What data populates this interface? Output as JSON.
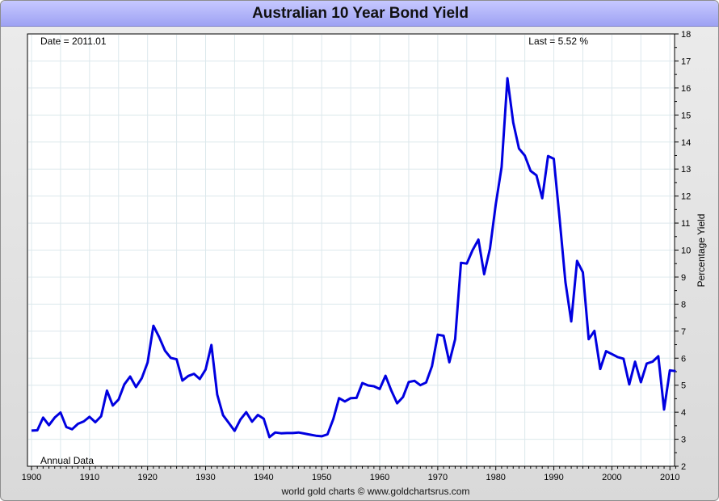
{
  "title": "Australian 10 Year Bond Yield",
  "footer": "world gold charts © www.goldchartsrus.com",
  "colors": {
    "line": "#0000e0",
    "grid": "#dce8ec",
    "title_bg": "#b2b5ff"
  },
  "chart_data": {
    "type": "line",
    "title": "Australian 10 Year Bond Yield",
    "xlabel": "",
    "ylabel": "Percentage Yield",
    "xlim": [
      1900,
      2011.5
    ],
    "ylim": [
      2,
      18
    ],
    "y_axis_side": "right",
    "grid": true,
    "x_ticks": [
      1900,
      1910,
      1920,
      1930,
      1940,
      1950,
      1960,
      1970,
      1980,
      1990,
      2000,
      2010
    ],
    "y_ticks": [
      2,
      3,
      4,
      5,
      6,
      7,
      8,
      9,
      10,
      11,
      12,
      13,
      14,
      15,
      16,
      17,
      18
    ],
    "annotations": {
      "date": "Date = 2011.01",
      "last": "Last = 5.52 %",
      "frequency": "Annual Data"
    },
    "series": [
      {
        "name": "",
        "color": "#0000e0",
        "x": [
          1900,
          1901,
          1902,
          1903,
          1904,
          1905,
          1906,
          1907,
          1908,
          1909,
          1910,
          1911,
          1912,
          1913,
          1914,
          1915,
          1916,
          1917,
          1918,
          1919,
          1920,
          1921,
          1922,
          1923,
          1924,
          1925,
          1926,
          1927,
          1928,
          1929,
          1930,
          1931,
          1932,
          1933,
          1934,
          1935,
          1936,
          1937,
          1938,
          1939,
          1940,
          1941,
          1942,
          1943,
          1944,
          1945,
          1946,
          1947,
          1948,
          1949,
          1950,
          1951,
          1952,
          1953,
          1954,
          1955,
          1956,
          1957,
          1958,
          1959,
          1960,
          1961,
          1962,
          1963,
          1964,
          1965,
          1966,
          1967,
          1968,
          1969,
          1970,
          1971,
          1972,
          1973,
          1974,
          1975,
          1976,
          1977,
          1978,
          1979,
          1980,
          1981,
          1982,
          1983,
          1984,
          1985,
          1986,
          1987,
          1988,
          1989,
          1990,
          1991,
          1992,
          1993,
          1994,
          1995,
          1996,
          1997,
          1998,
          1999,
          2000,
          2001,
          2002,
          2003,
          2004,
          2005,
          2006,
          2007,
          2008,
          2009,
          2010,
          2011
        ],
        "y": [
          3.32,
          3.33,
          3.8,
          3.52,
          3.8,
          3.99,
          3.45,
          3.37,
          3.57,
          3.66,
          3.83,
          3.63,
          3.85,
          4.8,
          4.25,
          4.47,
          5.03,
          5.32,
          4.93,
          5.26,
          5.84,
          7.2,
          6.78,
          6.28,
          6.01,
          5.96,
          5.17,
          5.34,
          5.42,
          5.23,
          5.58,
          6.49,
          4.65,
          3.89,
          3.6,
          3.31,
          3.73,
          4.0,
          3.65,
          3.9,
          3.76,
          3.08,
          3.25,
          3.22,
          3.23,
          3.23,
          3.25,
          3.21,
          3.17,
          3.13,
          3.11,
          3.18,
          3.75,
          4.52,
          4.4,
          4.52,
          4.53,
          5.08,
          4.99,
          4.96,
          4.86,
          5.35,
          4.8,
          4.33,
          4.56,
          5.12,
          5.16,
          5.0,
          5.1,
          5.7,
          6.87,
          6.83,
          5.85,
          6.7,
          9.53,
          9.5,
          10.0,
          10.39,
          9.11,
          10.05,
          11.7,
          13.07,
          16.36,
          14.72,
          13.76,
          13.5,
          12.93,
          12.77,
          11.92,
          13.48,
          13.38,
          11.16,
          8.82,
          7.36,
          9.6,
          9.18,
          6.7,
          7.01,
          5.6,
          6.26,
          6.15,
          6.04,
          5.98,
          5.03,
          5.87,
          5.11,
          5.8,
          5.87,
          6.07,
          4.1,
          5.55,
          5.52
        ]
      }
    ]
  }
}
